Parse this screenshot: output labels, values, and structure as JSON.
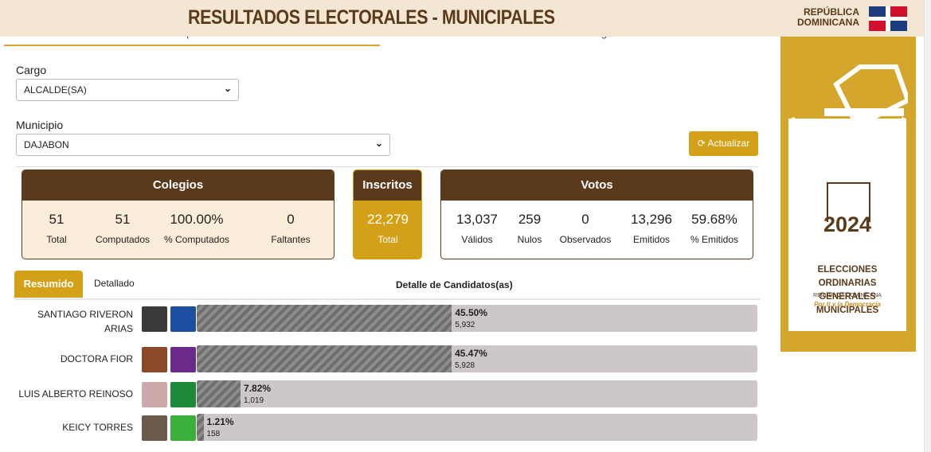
{
  "header": {
    "title": "RESULTADOS ELECTORALES - MUNICIPALES",
    "country_line1": "REPÚBLICA",
    "country_line2": "DOMINICANA"
  },
  "tabs": [
    "Resumen por Candidatos",
    "Detalle de Colegios"
  ],
  "filters": {
    "cargo_label": "Cargo",
    "cargo": "ALCALDE(SA)",
    "municipio_label": "Municipio",
    "municipio": "DAJABON"
  },
  "refresh": "Actualizar",
  "colegios": {
    "title": "Colegios",
    "stats": [
      {
        "value": "51",
        "label": "Total"
      },
      {
        "value": "51",
        "label": "Computados"
      },
      {
        "value": "100.00%",
        "label": "% Computados"
      },
      {
        "value": "0",
        "label": "Faltantes"
      }
    ]
  },
  "inscritos": {
    "title": "Inscritos",
    "value": "22,279",
    "label": "Total"
  },
  "votos": {
    "title": "Votos",
    "stats": [
      {
        "value": "13,037",
        "label": "Válidos"
      },
      {
        "value": "259",
        "label": "Nulos"
      },
      {
        "value": "0",
        "label": "Observados"
      },
      {
        "value": "13,296",
        "label": "Emitidos"
      },
      {
        "value": "59.68%",
        "label": "% Emitidos"
      }
    ]
  },
  "view_tabs": [
    "Resumido",
    "Detallado"
  ],
  "detail_title": "Detalle de Candidatos(as)",
  "candidates": [
    {
      "name": "SANTIAGO RIVERON ARIAS",
      "percent": 45.5,
      "percent_label": "45.50%",
      "votes": "5,932"
    },
    {
      "name": "DOCTORA FIOR",
      "percent": 45.47,
      "percent_label": "45.47%",
      "votes": "5,928"
    },
    {
      "name": "LUIS ALBERTO REINOSO",
      "percent": 7.82,
      "percent_label": "7.82%",
      "votes": "1,019"
    },
    {
      "name": "KEICY TORRES",
      "percent": 1.21,
      "percent_label": "1.21%",
      "votes": "158"
    }
  ],
  "banner": {
    "year": "2024",
    "line1": "ELECCIONES ORDINARIAS",
    "line2": "GENERALES MUNICIPALES",
    "country": "REPÚBLICA DOMINICANA",
    "slogan": "Por ti y la Democracia"
  }
}
